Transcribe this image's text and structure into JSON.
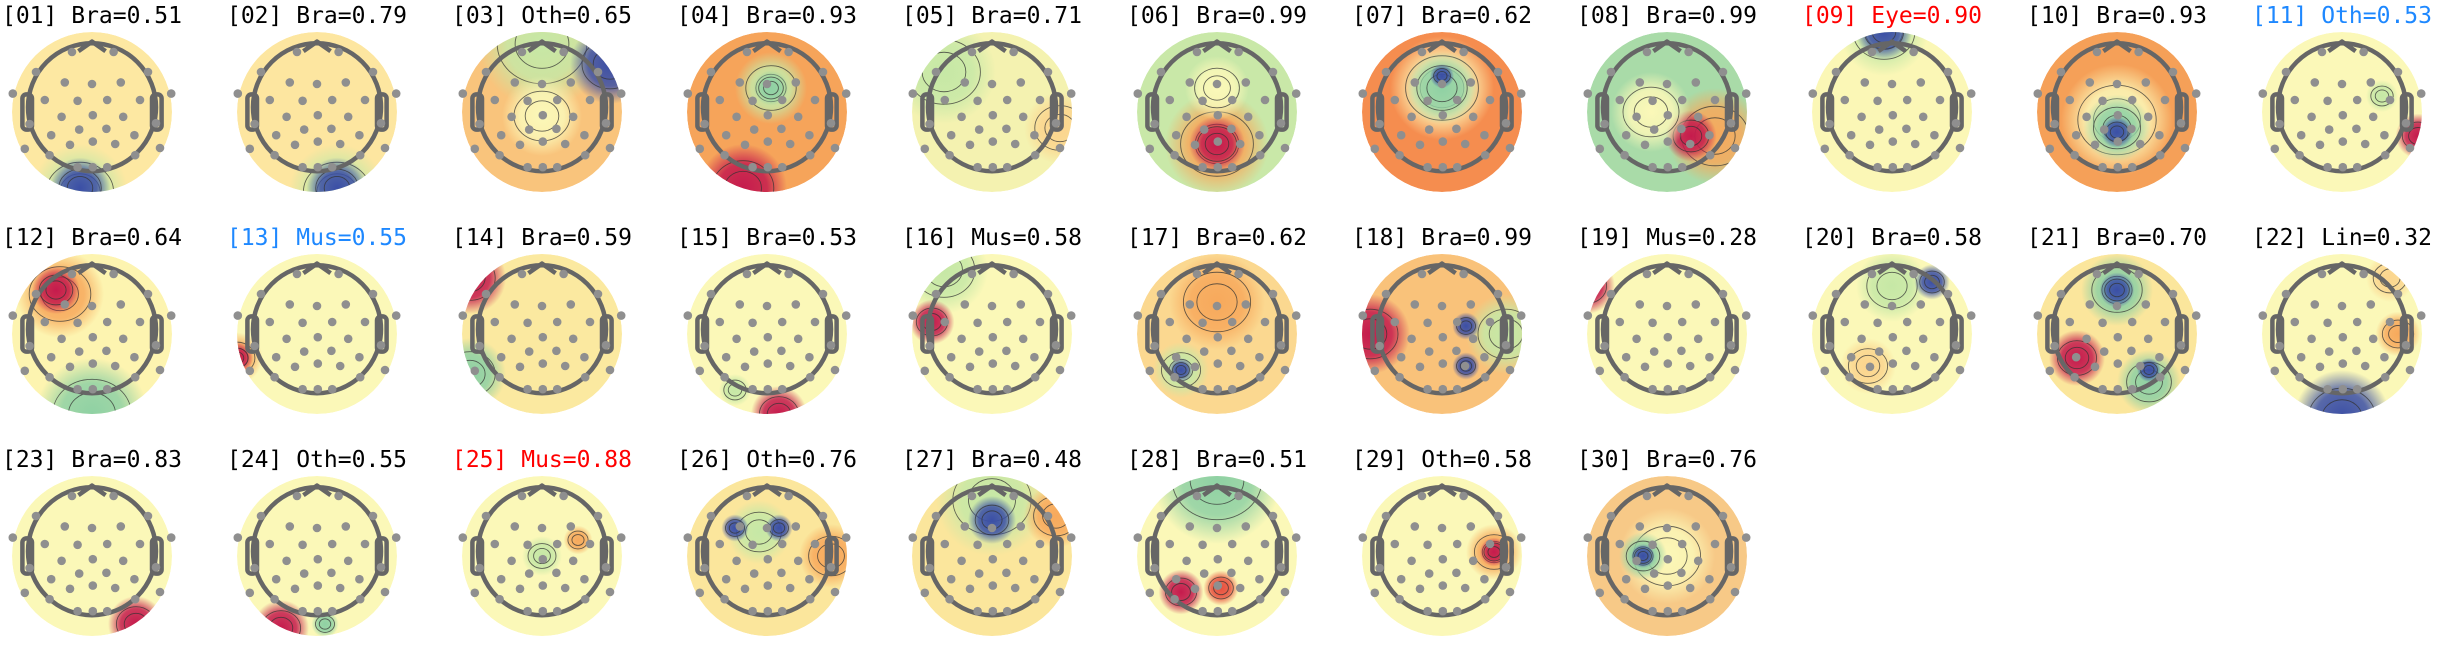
{
  "chart_data": {
    "type": "heatmap",
    "subtype": "ica-component-topomaps",
    "colormap": "spectral-reversed",
    "layout_rows": 3,
    "layout_cols": 11,
    "label_colors": {
      "default": "#000000",
      "red": "#ff0000",
      "blue": "#1e88ff"
    },
    "components": [
      {
        "title": "[01] Bra=0.51",
        "index": 1,
        "class": "Bra",
        "score": 0.51,
        "color": "#000000"
      },
      {
        "title": "[02] Bra=0.79",
        "index": 2,
        "class": "Bra",
        "score": 0.79,
        "color": "#000000"
      },
      {
        "title": "[03] Oth=0.65",
        "index": 3,
        "class": "Oth",
        "score": 0.65,
        "color": "#000000"
      },
      {
        "title": "[04] Bra=0.93",
        "index": 4,
        "class": "Bra",
        "score": 0.93,
        "color": "#000000"
      },
      {
        "title": "[05] Bra=0.71",
        "index": 5,
        "class": "Bra",
        "score": 0.71,
        "color": "#000000"
      },
      {
        "title": "[06] Bra=0.99",
        "index": 6,
        "class": "Bra",
        "score": 0.99,
        "color": "#000000"
      },
      {
        "title": "[07] Bra=0.62",
        "index": 7,
        "class": "Bra",
        "score": 0.62,
        "color": "#000000"
      },
      {
        "title": "[08] Bra=0.99",
        "index": 8,
        "class": "Bra",
        "score": 0.99,
        "color": "#000000"
      },
      {
        "title": "[09] Eye=0.90",
        "index": 9,
        "class": "Eye",
        "score": 0.9,
        "color": "#ff0000"
      },
      {
        "title": "[10] Bra=0.93",
        "index": 10,
        "class": "Bra",
        "score": 0.93,
        "color": "#000000"
      },
      {
        "title": "[11] Oth=0.53",
        "index": 11,
        "class": "Oth",
        "score": 0.53,
        "color": "#1e88ff"
      },
      {
        "title": "[12] Bra=0.64",
        "index": 12,
        "class": "Bra",
        "score": 0.64,
        "color": "#000000"
      },
      {
        "title": "[13] Mus=0.55",
        "index": 13,
        "class": "Mus",
        "score": 0.55,
        "color": "#1e88ff"
      },
      {
        "title": "[14] Bra=0.59",
        "index": 14,
        "class": "Bra",
        "score": 0.59,
        "color": "#000000"
      },
      {
        "title": "[15] Bra=0.53",
        "index": 15,
        "class": "Bra",
        "score": 0.53,
        "color": "#000000"
      },
      {
        "title": "[16] Mus=0.58",
        "index": 16,
        "class": "Mus",
        "score": 0.58,
        "color": "#000000"
      },
      {
        "title": "[17] Bra=0.62",
        "index": 17,
        "class": "Bra",
        "score": 0.62,
        "color": "#000000"
      },
      {
        "title": "[18] Bra=0.99",
        "index": 18,
        "class": "Bra",
        "score": 0.99,
        "color": "#000000"
      },
      {
        "title": "[19] Mus=0.28",
        "index": 19,
        "class": "Mus",
        "score": 0.28,
        "color": "#000000"
      },
      {
        "title": "[20] Bra=0.58",
        "index": 20,
        "class": "Bra",
        "score": 0.58,
        "color": "#000000"
      },
      {
        "title": "[21] Bra=0.70",
        "index": 21,
        "class": "Bra",
        "score": 0.7,
        "color": "#000000"
      },
      {
        "title": "[22] Lin=0.32",
        "index": 22,
        "class": "Lin",
        "score": 0.32,
        "color": "#000000"
      },
      {
        "title": "[23] Bra=0.83",
        "index": 23,
        "class": "Bra",
        "score": 0.83,
        "color": "#000000"
      },
      {
        "title": "[24] Oth=0.55",
        "index": 24,
        "class": "Oth",
        "score": 0.55,
        "color": "#000000"
      },
      {
        "title": "[25] Mus=0.88",
        "index": 25,
        "class": "Mus",
        "score": 0.88,
        "color": "#ff0000"
      },
      {
        "title": "[26] Oth=0.76",
        "index": 26,
        "class": "Oth",
        "score": 0.76,
        "color": "#000000"
      },
      {
        "title": "[27] Bra=0.48",
        "index": 27,
        "class": "Bra",
        "score": 0.48,
        "color": "#000000"
      },
      {
        "title": "[28] Bra=0.51",
        "index": 28,
        "class": "Bra",
        "score": 0.51,
        "color": "#000000"
      },
      {
        "title": "[29] Oth=0.58",
        "index": 29,
        "class": "Oth",
        "score": 0.58,
        "color": "#000000"
      },
      {
        "title": "[30] Bra=0.76",
        "index": 30,
        "class": "Bra",
        "score": 0.76,
        "color": "#000000"
      }
    ]
  }
}
